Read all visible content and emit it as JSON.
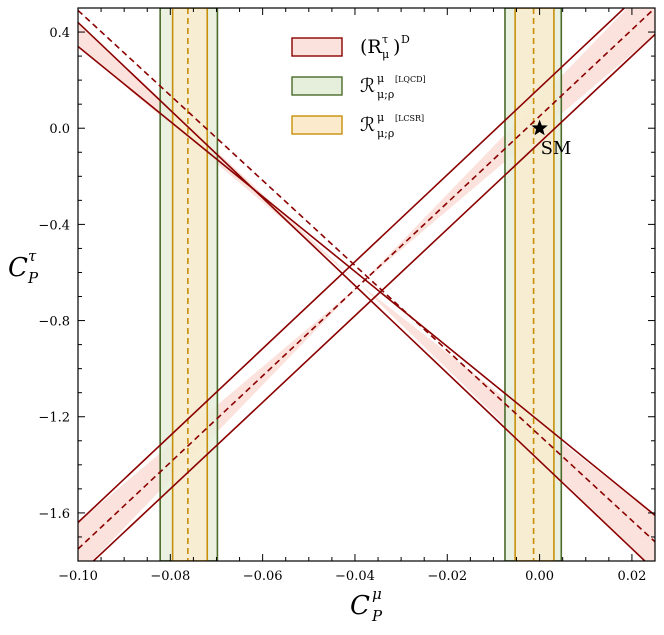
{
  "chart_data": {
    "type": "line",
    "title": "",
    "xlabel": {
      "main": "C",
      "sub": "P",
      "sup": "μ"
    },
    "ylabel": {
      "main": "C",
      "sub": "P",
      "sup": "τ"
    },
    "xlim": [
      -0.1,
      0.025
    ],
    "ylim": [
      -1.8,
      0.5
    ],
    "xticks": [
      -0.1,
      -0.08,
      -0.06,
      -0.04,
      -0.02,
      0.0,
      0.02
    ],
    "xtick_labels": [
      "−0.10",
      "−0.08",
      "−0.06",
      "−0.04",
      "−0.02",
      "0.00",
      "0.02"
    ],
    "yticks": [
      0.4,
      0.0,
      -0.4,
      -0.8,
      -1.2,
      -1.6
    ],
    "ytick_labels": [
      "0.4",
      "0.0",
      "−0.4",
      "−0.8",
      "−1.2",
      "−1.6"
    ],
    "grid": false,
    "legend_position": "top-center",
    "colors": {
      "red_line": "#8b0000",
      "red_fill": "#fbe2dc",
      "green_line": "#4a6b2a",
      "green_fill": "#e6efdc",
      "orange_line": "#c8900a",
      "orange_fill": "#fbebcc"
    },
    "crossing_point": {
      "x": -0.0389,
      "y": -0.65
    },
    "red_band": {
      "series_name": {
        "main": "(R",
        "sub": "μ",
        "sup": "τ",
        "close": ")",
        "outer_sup": "D"
      },
      "central_upper_branch": [
        {
          "x": -0.1,
          "y": 0.49
        },
        {
          "x": 0.025,
          "y": -1.72
        }
      ],
      "central_lower_branch": [
        {
          "x": -0.1,
          "y": -1.75
        },
        {
          "x": 0.025,
          "y": 0.5
        }
      ],
      "wedge_edges": [
        [
          {
            "x": -0.1,
            "y": 0.44
          },
          {
            "x": 0.025,
            "y": -1.84
          }
        ],
        [
          {
            "x": -0.1,
            "y": 0.34
          },
          {
            "x": 0.025,
            "y": -1.61
          }
        ],
        [
          {
            "x": -0.1,
            "y": -1.64
          },
          {
            "x": 0.025,
            "y": 0.62
          }
        ],
        [
          {
            "x": -0.1,
            "y": -1.86
          },
          {
            "x": 0.025,
            "y": 0.39
          }
        ]
      ]
    },
    "vertical_bands": [
      {
        "key": "lqcd",
        "center": -0.0762,
        "lo": -0.0822,
        "hi": -0.0698,
        "color": "green"
      },
      {
        "key": "lcsr",
        "center": -0.0762,
        "lo": -0.0795,
        "hi": -0.072,
        "color": "orange"
      },
      {
        "key": "lqcd",
        "center": -0.0013,
        "lo": -0.0075,
        "hi": 0.0047,
        "color": "green"
      },
      {
        "key": "lcsr",
        "center": -0.0013,
        "lo": -0.0053,
        "hi": 0.0031,
        "color": "orange"
      }
    ],
    "legend": [
      {
        "key": "red",
        "main": "(R",
        "sub": "μ",
        "sup": "τ",
        "close": ")",
        "outer_sup": "D"
      },
      {
        "key": "lqcd",
        "main": "ℛ",
        "sub": "μ;ρ",
        "sup": "μ",
        "tag": "[LQCD]"
      },
      {
        "key": "lcsr",
        "main": "ℛ",
        "sub": "μ;ρ",
        "sup": "μ",
        "tag": "[LCSR]"
      }
    ],
    "sm_point": {
      "x": 0.0,
      "y": 0.0,
      "label": "SM"
    }
  }
}
